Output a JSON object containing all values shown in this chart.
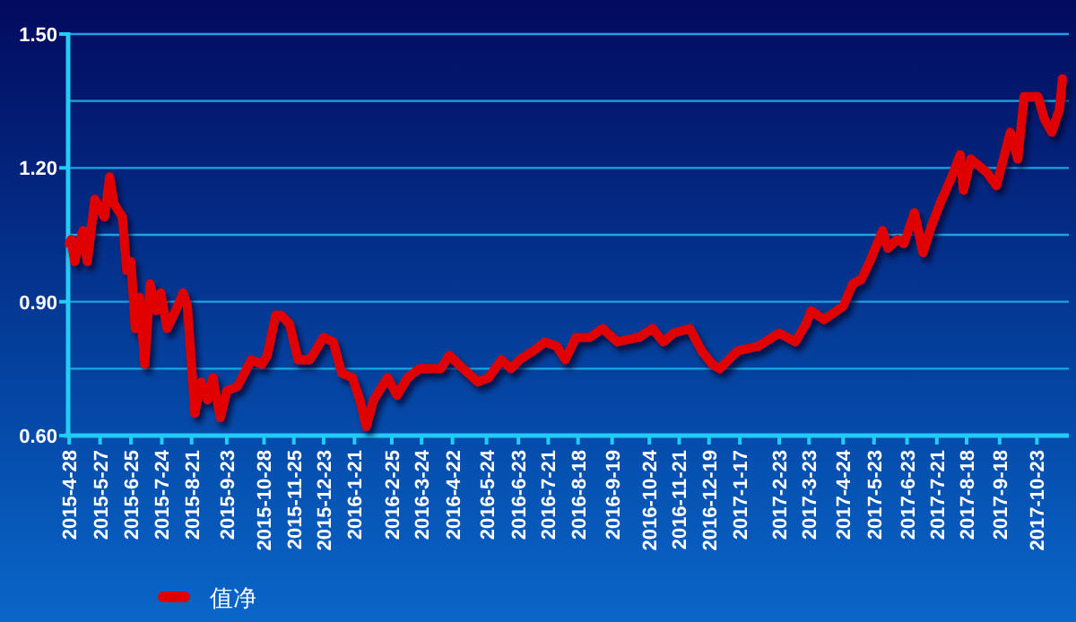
{
  "chart_data": {
    "type": "line",
    "x": [
      "2015-04-28",
      "2015-04-30",
      "2015-05-03",
      "2015-05-11",
      "2015-05-15",
      "2015-05-22",
      "2015-05-31",
      "2015-06-05",
      "2015-06-09",
      "2015-06-17",
      "2015-06-21",
      "2015-06-25",
      "2015-06-29",
      "2015-07-03",
      "2015-07-08",
      "2015-07-13",
      "2015-07-19",
      "2015-07-23",
      "2015-07-29",
      "2015-08-06",
      "2015-08-13",
      "2015-08-17",
      "2015-08-24",
      "2015-08-30",
      "2015-09-05",
      "2015-09-10",
      "2015-09-17",
      "2015-09-23",
      "2015-10-03",
      "2015-10-16",
      "2015-10-26",
      "2015-10-31",
      "2015-11-08",
      "2015-11-13",
      "2015-11-21",
      "2015-11-29",
      "2015-12-10",
      "2015-12-23",
      "2016-01-01",
      "2016-01-09",
      "2016-01-19",
      "2016-01-26",
      "2016-02-01",
      "2016-02-08",
      "2016-02-21",
      "2016-03-01",
      "2016-03-11",
      "2016-03-22",
      "2016-04-11",
      "2016-04-19",
      "2016-05-02",
      "2016-05-16",
      "2016-05-26",
      "2016-06-07",
      "2016-06-16",
      "2016-06-24",
      "2016-07-07",
      "2016-07-18",
      "2016-07-29",
      "2016-08-06",
      "2016-08-16",
      "2016-08-29",
      "2016-09-10",
      "2016-09-24",
      "2016-10-14",
      "2016-10-27",
      "2016-11-06",
      "2016-11-16",
      "2016-12-01",
      "2016-12-12",
      "2016-12-22",
      "2016-12-29",
      "2017-01-15",
      "2017-02-03",
      "2017-02-23",
      "2017-03-10",
      "2017-03-20",
      "2017-03-25",
      "2017-04-06",
      "2017-04-24",
      "2017-05-03",
      "2017-05-11",
      "2017-05-19",
      "2017-05-31",
      "2017-06-05",
      "2017-06-14",
      "2017-06-20",
      "2017-06-30",
      "2017-07-08",
      "2017-07-16",
      "2017-07-24",
      "2017-08-04",
      "2017-08-12",
      "2017-08-15",
      "2017-08-22",
      "2017-09-06",
      "2017-09-15",
      "2017-09-28",
      "2017-10-05",
      "2017-10-11",
      "2017-10-24",
      "2017-10-30",
      "2017-11-06",
      "2017-11-13",
      "2017-11-16"
    ],
    "series": [
      {
        "name": "值净",
        "color": "#e00000",
        "values": [
          1.03,
          1.04,
          0.99,
          1.06,
          0.99,
          1.13,
          1.09,
          1.18,
          1.12,
          1.09,
          0.97,
          0.99,
          0.84,
          0.91,
          0.76,
          0.94,
          0.88,
          0.92,
          0.84,
          0.88,
          0.92,
          0.89,
          0.65,
          0.72,
          0.68,
          0.73,
          0.64,
          0.7,
          0.71,
          0.77,
          0.76,
          0.78,
          0.87,
          0.87,
          0.85,
          0.77,
          0.77,
          0.82,
          0.81,
          0.74,
          0.73,
          0.68,
          0.62,
          0.68,
          0.73,
          0.69,
          0.73,
          0.75,
          0.75,
          0.78,
          0.75,
          0.72,
          0.73,
          0.77,
          0.75,
          0.77,
          0.79,
          0.81,
          0.8,
          0.77,
          0.82,
          0.82,
          0.84,
          0.81,
          0.82,
          0.84,
          0.81,
          0.83,
          0.84,
          0.79,
          0.76,
          0.75,
          0.79,
          0.8,
          0.83,
          0.81,
          0.85,
          0.88,
          0.86,
          0.89,
          0.94,
          0.95,
          0.99,
          1.06,
          1.02,
          1.04,
          1.03,
          1.1,
          1.01,
          1.07,
          1.12,
          1.18,
          1.23,
          1.15,
          1.22,
          1.19,
          1.16,
          1.28,
          1.22,
          1.36,
          1.36,
          1.31,
          1.28,
          1.33,
          1.4
        ]
      }
    ],
    "xlim": [
      "2015-04-27",
      "2017-11-22"
    ],
    "xticks": [
      {
        "value": "2015-04-28",
        "label": "2015-4-28"
      },
      {
        "value": "2015-05-27",
        "label": "2015-5-27"
      },
      {
        "value": "2015-06-25",
        "label": "2015-6-25"
      },
      {
        "value": "2015-07-24",
        "label": "2015-7-24"
      },
      {
        "value": "2015-08-21",
        "label": "2015-8-21"
      },
      {
        "value": "2015-09-23",
        "label": "2015-9-23"
      },
      {
        "value": "2015-10-28",
        "label": "2015-10-28"
      },
      {
        "value": "2015-11-25",
        "label": "2015-11-25"
      },
      {
        "value": "2015-12-23",
        "label": "2015-12-23"
      },
      {
        "value": "2016-01-21",
        "label": "2016-1-21"
      },
      {
        "value": "2016-02-25",
        "label": "2016-2-25"
      },
      {
        "value": "2016-03-24",
        "label": "2016-3-24"
      },
      {
        "value": "2016-04-22",
        "label": "2016-4-22"
      },
      {
        "value": "2016-05-24",
        "label": "2016-5-24"
      },
      {
        "value": "2016-06-23",
        "label": "2016-6-23"
      },
      {
        "value": "2016-07-21",
        "label": "2016-7-21"
      },
      {
        "value": "2016-08-18",
        "label": "2016-8-18"
      },
      {
        "value": "2016-09-19",
        "label": "2016-9-19"
      },
      {
        "value": "2016-10-24",
        "label": "2016-10-24"
      },
      {
        "value": "2016-11-21",
        "label": "2016-11-21"
      },
      {
        "value": "2016-12-19",
        "label": "2016-12-19"
      },
      {
        "value": "2017-01-17",
        "label": "2017-1-17"
      },
      {
        "value": "2017-02-23",
        "label": "2017-2-23"
      },
      {
        "value": "2017-03-23",
        "label": "2017-3-23"
      },
      {
        "value": "2017-04-24",
        "label": "2017-4-24"
      },
      {
        "value": "2017-05-23",
        "label": "2017-5-23"
      },
      {
        "value": "2017-06-23",
        "label": "2017-6-23"
      },
      {
        "value": "2017-07-21",
        "label": "2017-7-21"
      },
      {
        "value": "2017-08-18",
        "label": "2017-8-18"
      },
      {
        "value": "2017-09-18",
        "label": "2017-9-18"
      },
      {
        "value": "2017-10-23",
        "label": "2017-10-23"
      }
    ],
    "ylim": [
      0.6,
      1.5
    ],
    "yticks": [
      {
        "value": 0.6,
        "label": "0.60"
      },
      {
        "value": 0.75,
        "label": null
      },
      {
        "value": 0.9,
        "label": "0.90"
      },
      {
        "value": 1.05,
        "label": null
      },
      {
        "value": 1.2,
        "label": "1.20"
      },
      {
        "value": 1.35,
        "label": null
      },
      {
        "value": 1.5,
        "label": "1.50"
      }
    ],
    "grid": "y",
    "legend": "bottom left",
    "marker": "none",
    "line_style": "solid"
  }
}
